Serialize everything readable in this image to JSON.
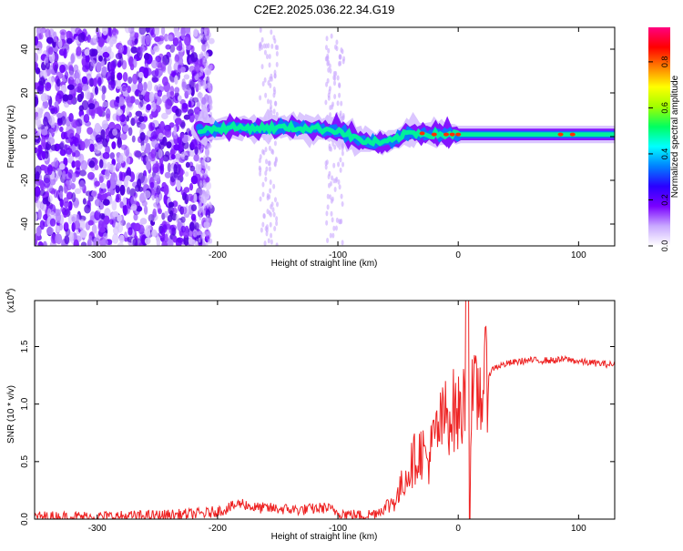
{
  "title": "C2E2.2025.036.22.34.G19",
  "chart_data": [
    {
      "type": "heatmap",
      "xlabel": "Height of straight line (km)",
      "ylabel": "Frequency (Hz)",
      "xlim": [
        -352,
        130
      ],
      "ylim": [
        -50,
        50
      ],
      "x_ticks": [
        -300,
        -200,
        -100,
        0,
        100
      ],
      "y_ticks": [
        -40,
        -20,
        0,
        20,
        40
      ],
      "colorbar": {
        "label": "Normalized spectral amplitude",
        "range": [
          0,
          0.95
        ],
        "ticks": [
          0.0,
          0.2,
          0.4,
          0.6,
          0.8
        ],
        "colors": [
          "#ffffff",
          "#c9a9ff",
          "#7a00ff",
          "#2a00ff",
          "#0080ff",
          "#00ffff",
          "#00ff60",
          "#a0ff00",
          "#ffff00",
          "#ff8000",
          "#ff0000",
          "#ff0080"
        ]
      },
      "noise_region": [
        -352,
        -205
      ],
      "ridge": [
        {
          "x": -215,
          "y": 3
        },
        {
          "x": -190,
          "y": 4
        },
        {
          "x": -160,
          "y": 4
        },
        {
          "x": -130,
          "y": 4
        },
        {
          "x": -100,
          "y": 3
        },
        {
          "x": -80,
          "y": -2
        },
        {
          "x": -60,
          "y": -3
        },
        {
          "x": -40,
          "y": 2
        },
        {
          "x": -20,
          "y": 1
        },
        {
          "x": 0,
          "y": 1
        },
        {
          "x": 50,
          "y": 1
        },
        {
          "x": 100,
          "y": 1
        },
        {
          "x": 130,
          "y": 1
        }
      ]
    },
    {
      "type": "line",
      "xlabel": "Height of straight line (km)",
      "ylabel": "SNR (10 * v/v)",
      "y_scale_label": "(x10",
      "y_scale_exp": "4",
      "y_scale_close": ")",
      "xlim": [
        -352,
        130
      ],
      "ylim": [
        0,
        1.9
      ],
      "x_ticks": [
        -300,
        -200,
        -100,
        0,
        100
      ],
      "y_ticks": [
        0.0,
        0.5,
        1.0,
        1.5
      ],
      "color": "#ee2222",
      "x": [
        -352,
        -300,
        -250,
        -210,
        -195,
        -180,
        -170,
        -150,
        -130,
        -110,
        -100,
        -90,
        -80,
        -70,
        -60,
        -50,
        -45,
        -40,
        -35,
        -30,
        -25,
        -20,
        -15,
        -10,
        -5,
        0,
        5,
        10,
        15,
        20,
        25,
        30,
        40,
        50,
        60,
        70,
        80,
        90,
        100,
        110,
        120,
        130
      ],
      "y": [
        0.02,
        0.02,
        0.03,
        0.05,
        0.08,
        0.14,
        0.1,
        0.09,
        0.08,
        0.1,
        0.06,
        0.04,
        0.03,
        0.05,
        0.1,
        0.2,
        0.35,
        0.45,
        0.55,
        0.6,
        0.5,
        0.7,
        0.8,
        0.9,
        0.95,
        0.9,
        1.0,
        1.0,
        1.05,
        1.15,
        1.25,
        1.32,
        1.35,
        1.37,
        1.38,
        1.38,
        1.38,
        1.39,
        1.37,
        1.36,
        1.35,
        1.34
      ]
    }
  ]
}
